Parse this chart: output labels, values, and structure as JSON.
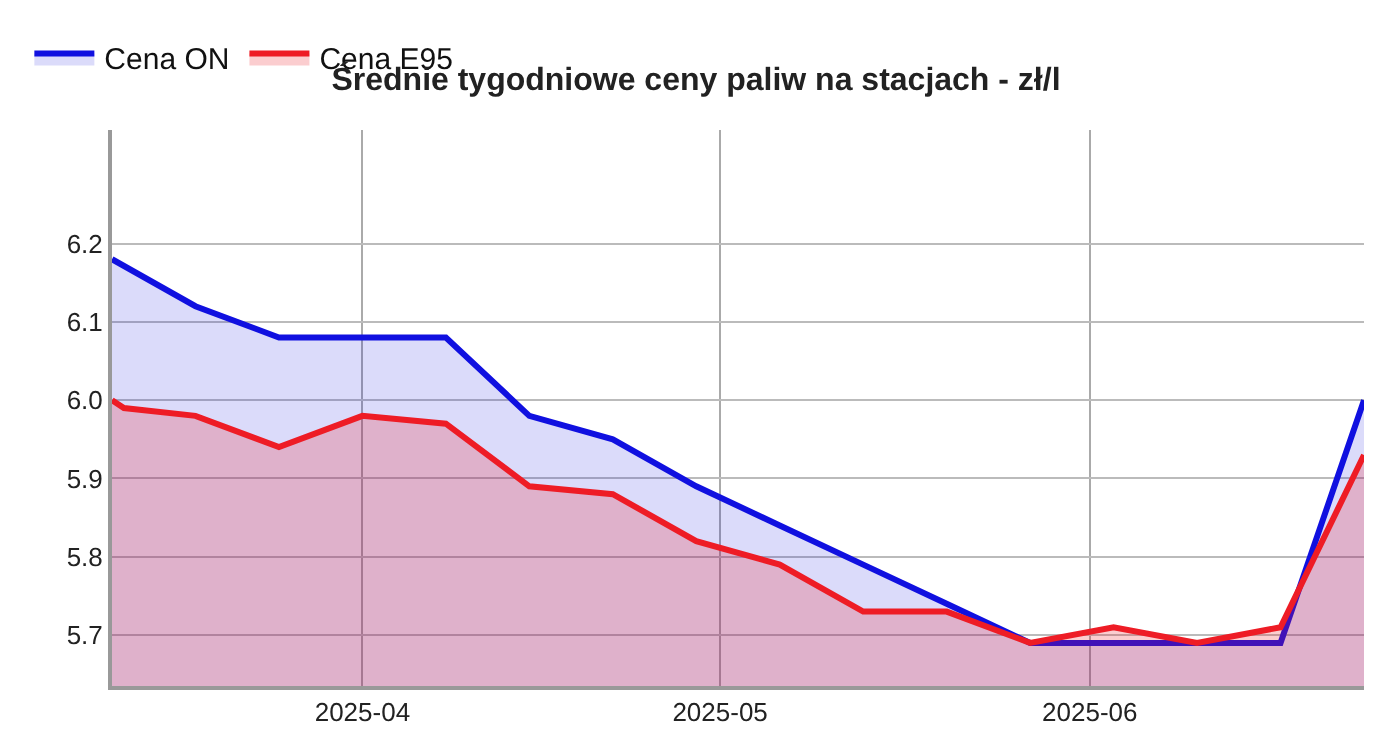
{
  "chart_data": {
    "type": "area",
    "title": "Średnie tygodniowe ceny paliw na stacjach - zł/l",
    "series": [
      {
        "name": "Cena ON",
        "color": "#1010e0",
        "x": [
          "2025-03-11",
          "2025-03-18",
          "2025-03-25",
          "2025-04-01",
          "2025-04-08",
          "2025-04-15",
          "2025-04-22",
          "2025-04-29",
          "2025-05-06",
          "2025-05-13",
          "2025-05-20",
          "2025-05-27",
          "2025-06-03",
          "2025-06-10",
          "2025-06-17",
          "2025-06-24"
        ],
        "values": [
          6.18,
          6.12,
          6.08,
          6.08,
          6.08,
          5.98,
          5.95,
          5.89,
          5.84,
          5.79,
          5.74,
          5.69,
          5.69,
          5.69,
          5.69,
          6.0
        ]
      },
      {
        "name": "Cena E95",
        "color": "#ee1c25",
        "x": [
          "2025-03-11",
          "2025-03-12",
          "2025-03-18",
          "2025-03-25",
          "2025-04-01",
          "2025-04-08",
          "2025-04-15",
          "2025-04-22",
          "2025-04-29",
          "2025-05-06",
          "2025-05-13",
          "2025-05-20",
          "2025-05-27",
          "2025-06-03",
          "2025-06-10",
          "2025-06-17",
          "2025-06-24"
        ],
        "values": [
          6.0,
          5.99,
          5.98,
          5.94,
          5.98,
          5.97,
          5.89,
          5.88,
          5.82,
          5.79,
          5.73,
          5.73,
          5.69,
          5.71,
          5.69,
          5.71,
          5.93
        ]
      }
    ],
    "xlim": [
      "2025-03-11",
      "2025-06-24"
    ],
    "xticks": [
      {
        "value": "2025-04-01",
        "label": "2025-04"
      },
      {
        "value": "2025-05-01",
        "label": "2025-05"
      },
      {
        "value": "2025-06-01",
        "label": "2025-06"
      }
    ],
    "ylim": [
      5.635,
      6.345
    ],
    "yticks": [
      5.7,
      5.8,
      5.9,
      {
        "value": 6.0,
        "label": "6.0"
      },
      6.1,
      6.2
    ],
    "grid": true,
    "legend": "top left"
  }
}
